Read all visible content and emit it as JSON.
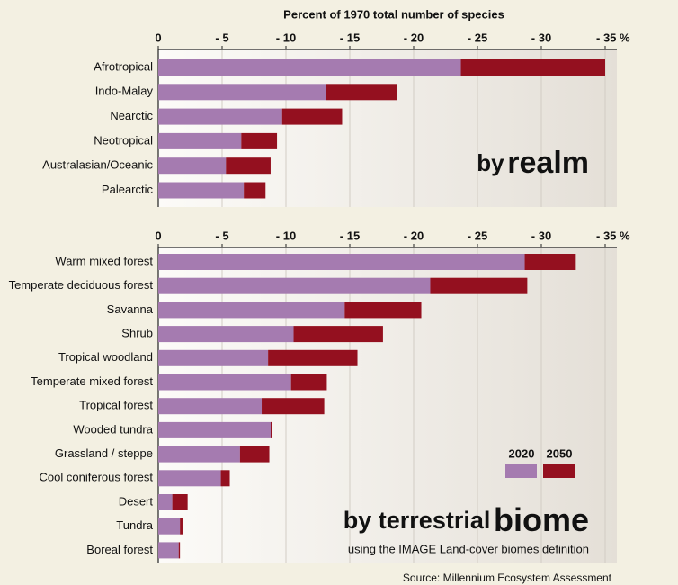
{
  "source": "Source: Millennium Ecosystem Assessment",
  "chart_data": [
    {
      "type": "bar",
      "orientation": "horizontal",
      "stacked": true,
      "xlabel": "Percent of 1970 total number of species",
      "panel_label": {
        "prefix": "by",
        "main": "realm"
      },
      "categories": [
        "Afrotropical",
        "Indo-Malay",
        "Nearctic",
        "Neotropical",
        "Australasian/Oceanic",
        "Palearctic"
      ],
      "series": [
        {
          "name": "2020",
          "color": "#a57bb0",
          "values": [
            -23.7,
            -13.1,
            -9.7,
            -6.5,
            -5.3,
            -6.7
          ]
        },
        {
          "name": "2050",
          "color": "#94101f",
          "values": [
            -11.3,
            -5.6,
            -4.7,
            -2.8,
            -3.5,
            -1.7
          ]
        }
      ],
      "xlim": [
        0,
        -35
      ],
      "xticks": [
        0,
        {
          "value": -5,
          "label": "- 5"
        },
        {
          "value": -10,
          "label": "- 10"
        },
        {
          "value": -15,
          "label": "- 15"
        },
        {
          "value": -20,
          "label": "- 20"
        },
        {
          "value": -25,
          "label": "- 25"
        },
        {
          "value": -30,
          "label": "- 30"
        },
        {
          "value": -35,
          "label": "- 35 %"
        }
      ],
      "grid": true,
      "legend": false
    },
    {
      "type": "bar",
      "orientation": "horizontal",
      "stacked": true,
      "panel_label": {
        "prefix": "by terrestrial",
        "main": "biome"
      },
      "subtitle": "using the IMAGE Land-cover biomes definition",
      "categories": [
        "Warm mixed forest",
        "Temperate deciduous forest",
        "Savanna",
        "Shrub",
        "Tropical woodland",
        "Temperate mixed forest",
        "Tropical forest",
        "Wooded tundra",
        "Grassland / steppe",
        "Cool coniferous forest",
        "Desert",
        "Tundra",
        "Boreal forest"
      ],
      "series": [
        {
          "name": "2020",
          "color": "#a57bb0",
          "values": [
            -28.7,
            -21.3,
            -14.6,
            -10.6,
            -8.6,
            -10.4,
            -8.1,
            -8.8,
            -6.4,
            -4.9,
            -1.1,
            -1.7,
            -1.6
          ]
        },
        {
          "name": "2050",
          "color": "#94101f",
          "values": [
            -4.0,
            -7.6,
            -6.0,
            -7.0,
            -7.0,
            -2.8,
            -4.9,
            -0.1,
            -2.3,
            -0.7,
            -1.2,
            -0.2,
            -0.1
          ]
        }
      ],
      "xlim": [
        0,
        -35
      ],
      "xticks": [
        0,
        {
          "value": -5,
          "label": "- 5"
        },
        {
          "value": -10,
          "label": "- 10"
        },
        {
          "value": -15,
          "label": "- 15"
        },
        {
          "value": -20,
          "label": "- 20"
        },
        {
          "value": -25,
          "label": "- 25"
        },
        {
          "value": -30,
          "label": "- 30"
        },
        {
          "value": -35,
          "label": "- 35 %"
        }
      ],
      "grid": true,
      "legend": "lower right"
    }
  ]
}
